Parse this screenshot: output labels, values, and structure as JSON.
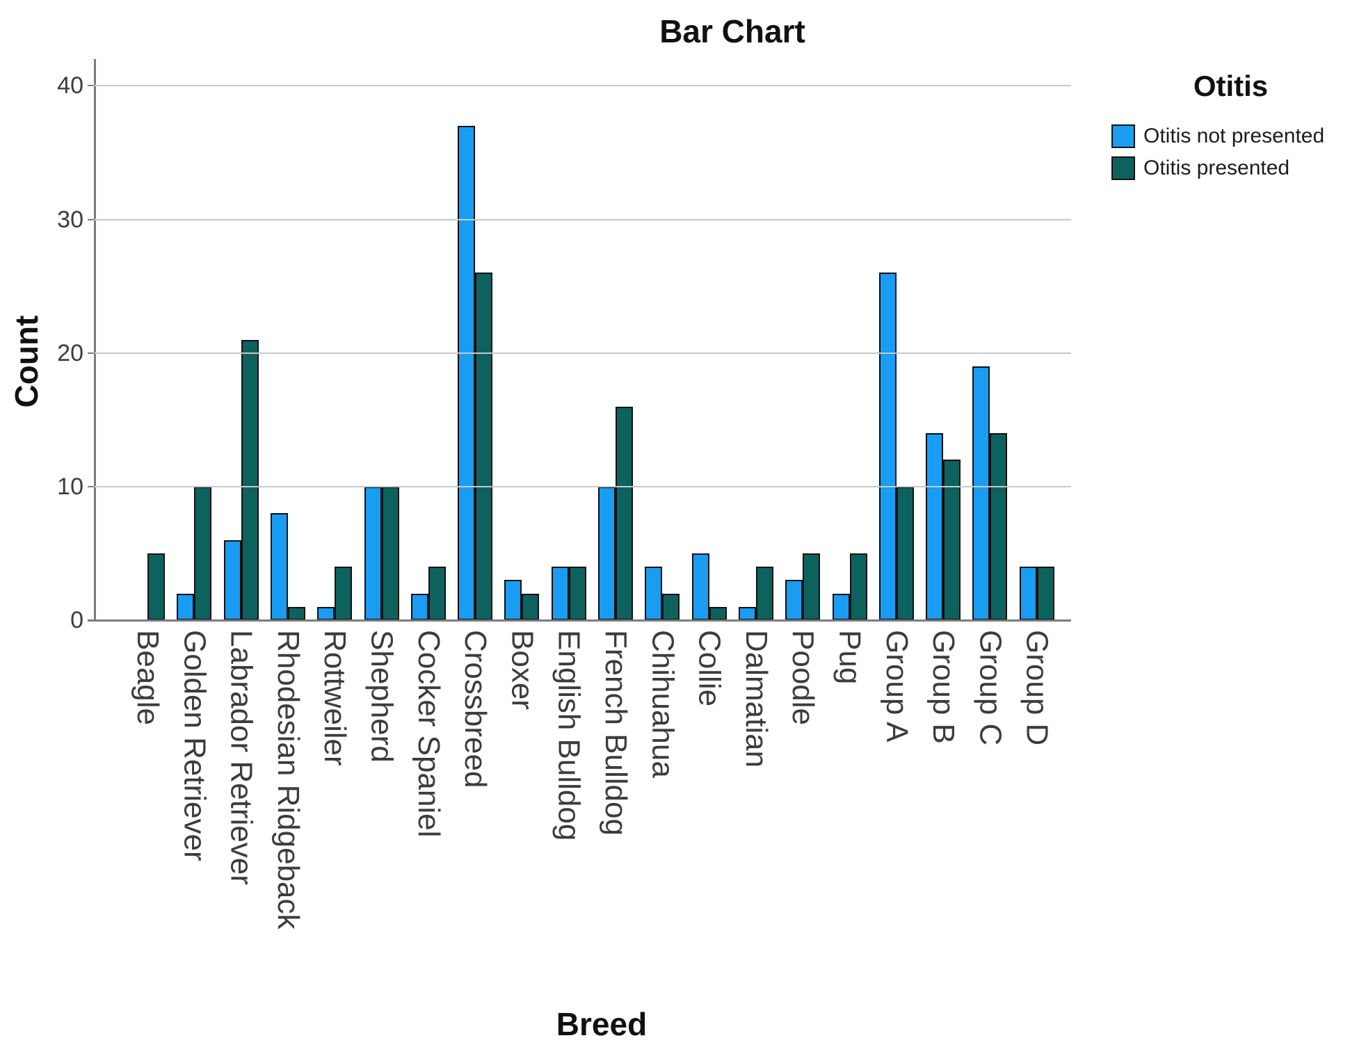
{
  "style": {
    "bar_border": "#111111",
    "gridline_color": "#c8c8c8",
    "axis_color": "#7b7b7b",
    "title_color": "#111111",
    "tick_text_color": "#3c3c3c"
  },
  "chart_data": {
    "type": "bar",
    "title": "Bar Chart",
    "xlabel": "Breed",
    "ylabel": "Count",
    "ylim": [
      0,
      42
    ],
    "yticks": [
      0,
      10,
      20,
      30,
      40
    ],
    "grid": "horizontal",
    "legend": {
      "title": "Otitis",
      "position": "outside-top-right"
    },
    "categories": [
      "Beagle",
      "Golden Retriever",
      "Labrador Retriever",
      "Rhodesian Ridgeback",
      "Rottweiler",
      "Shepherd",
      "Cocker Spaniel",
      "Crossbreed",
      "Boxer",
      "English Bulldog",
      "French Bulldog",
      "Chihuahua",
      "Collie",
      "Dalmatian",
      "Poodle",
      "Pug",
      "Group A",
      "Group B",
      "Group C",
      "Group D"
    ],
    "series": [
      {
        "name": "Otitis not presented",
        "color": "#189df2",
        "values": [
          0,
          2,
          6,
          8,
          1,
          10,
          2,
          37,
          3,
          4,
          10,
          4,
          5,
          1,
          3,
          2,
          26,
          14,
          19,
          4
        ]
      },
      {
        "name": "Otitis presented",
        "color": "#0d625e",
        "values": [
          5,
          10,
          21,
          1,
          4,
          10,
          4,
          26,
          2,
          4,
          16,
          2,
          1,
          4,
          5,
          5,
          10,
          12,
          14,
          4
        ]
      }
    ]
  }
}
